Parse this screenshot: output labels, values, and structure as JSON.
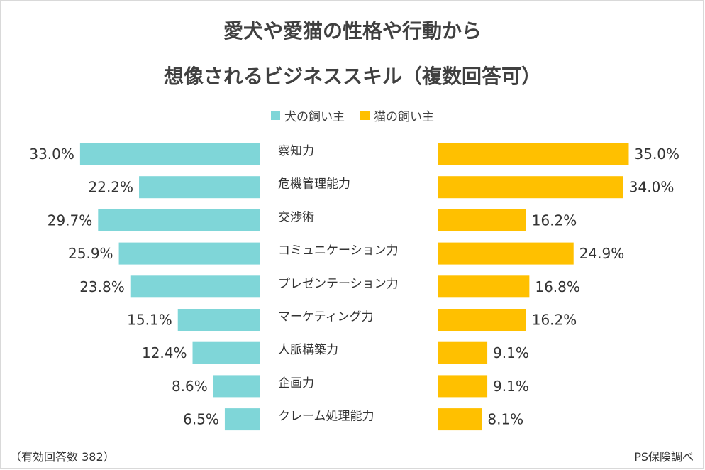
{
  "chart_data": {
    "type": "bar",
    "title_lines": [
      "愛犬や愛猫の性格や行動から",
      "想像されるビジネススキル（複数回答可）"
    ],
    "categories": [
      "察知力",
      "危機管理能力",
      "交渉術",
      "コミュニケーション力",
      "プレゼンテーション力",
      "マーケティング力",
      "人脈構築力",
      "企画力",
      "クレーム処理能力"
    ],
    "series": [
      {
        "name": "犬の飼い主",
        "color": "#7fd6d8",
        "values": [
          33.0,
          22.2,
          29.7,
          25.9,
          23.8,
          15.1,
          12.4,
          8.6,
          6.5
        ],
        "labels": [
          "33.0%",
          "22.2%",
          "29.7%",
          "25.9%",
          "23.8%",
          "15.1%",
          "12.4%",
          "8.6%",
          "6.5%"
        ]
      },
      {
        "name": "猫の飼い主",
        "color": "#ffc000",
        "values": [
          35.0,
          34.0,
          16.2,
          24.9,
          16.8,
          16.2,
          9.1,
          9.1,
          8.1
        ],
        "labels": [
          "35.0%",
          "34.0%",
          "16.2%",
          "24.9%",
          "16.8%",
          "16.2%",
          "9.1%",
          "9.1%",
          "8.1%"
        ]
      }
    ],
    "orientation": "horizontal-butterfly",
    "legend_position": "top-center",
    "grid": false
  },
  "footer": {
    "note": "（有効回答数 382）",
    "source": "PS保険調べ"
  }
}
